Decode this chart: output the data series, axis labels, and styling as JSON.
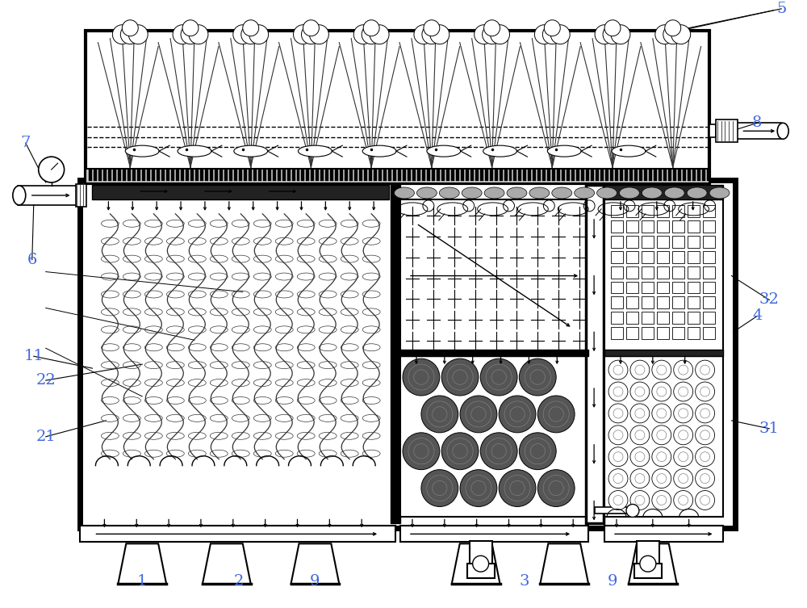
{
  "bg": "#ffffff",
  "blk": "#000000",
  "lgray": "#aaaaaa",
  "mgray": "#666666",
  "dgray": "#333333",
  "blue": "#4169E1",
  "label_fs": 14,
  "note_fs": 9
}
